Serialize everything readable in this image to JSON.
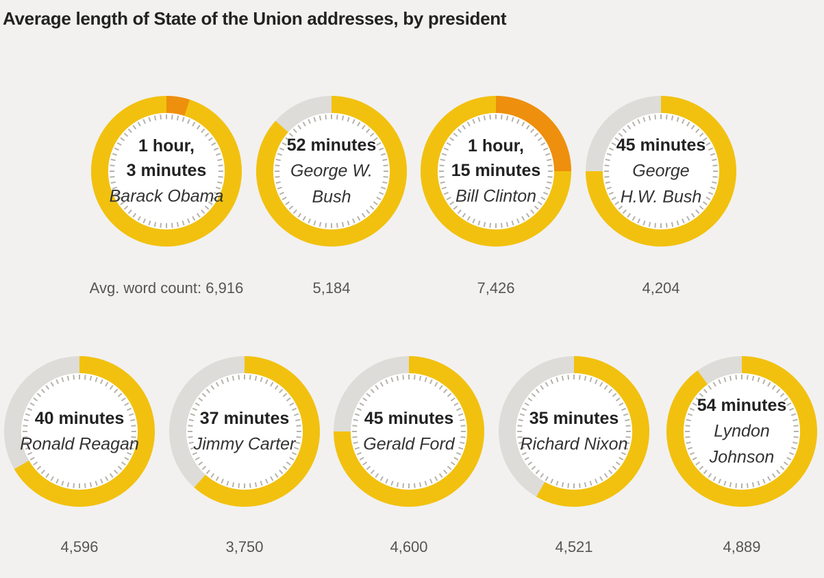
{
  "chart_data": {
    "type": "donut",
    "title": "Average length of State of the Union addresses, by president",
    "word_count_prefix": "Avg. word count: ",
    "unit": "minutes",
    "scale_minutes": 60,
    "colors": {
      "base": "#f2c10f",
      "overflow": "#ee8f0e",
      "empty": "#dedcd8",
      "ticks": "#b5b2ab"
    },
    "items": [
      {
        "president": [
          "Barack Obama"
        ],
        "label": [
          "1 hour,",
          "3 minutes"
        ],
        "minutes": 63,
        "word_count": "6,916"
      },
      {
        "president": [
          "George W.",
          "Bush"
        ],
        "label": [
          "52 minutes"
        ],
        "minutes": 52,
        "word_count": "5,184"
      },
      {
        "president": [
          "Bill Clinton"
        ],
        "label": [
          "1 hour,",
          "15 minutes"
        ],
        "minutes": 75,
        "word_count": "7,426"
      },
      {
        "president": [
          "George",
          "H.W. Bush"
        ],
        "label": [
          "45 minutes"
        ],
        "minutes": 45,
        "word_count": "4,204"
      },
      {
        "president": [
          "Ronald Reagan"
        ],
        "label": [
          "40 minutes"
        ],
        "minutes": 40,
        "word_count": "4,596"
      },
      {
        "president": [
          "Jimmy Carter"
        ],
        "label": [
          "37 minutes"
        ],
        "minutes": 37,
        "word_count": "3,750"
      },
      {
        "president": [
          "Gerald Ford"
        ],
        "label": [
          "45 minutes"
        ],
        "minutes": 45,
        "word_count": "4,600"
      },
      {
        "president": [
          "Richard Nixon"
        ],
        "label": [
          "35 minutes"
        ],
        "minutes": 35,
        "word_count": "4,521"
      },
      {
        "president": [
          "Lyndon",
          "Johnson"
        ],
        "label": [
          "54 minutes"
        ],
        "minutes": 54,
        "word_count": "4,889"
      }
    ]
  }
}
